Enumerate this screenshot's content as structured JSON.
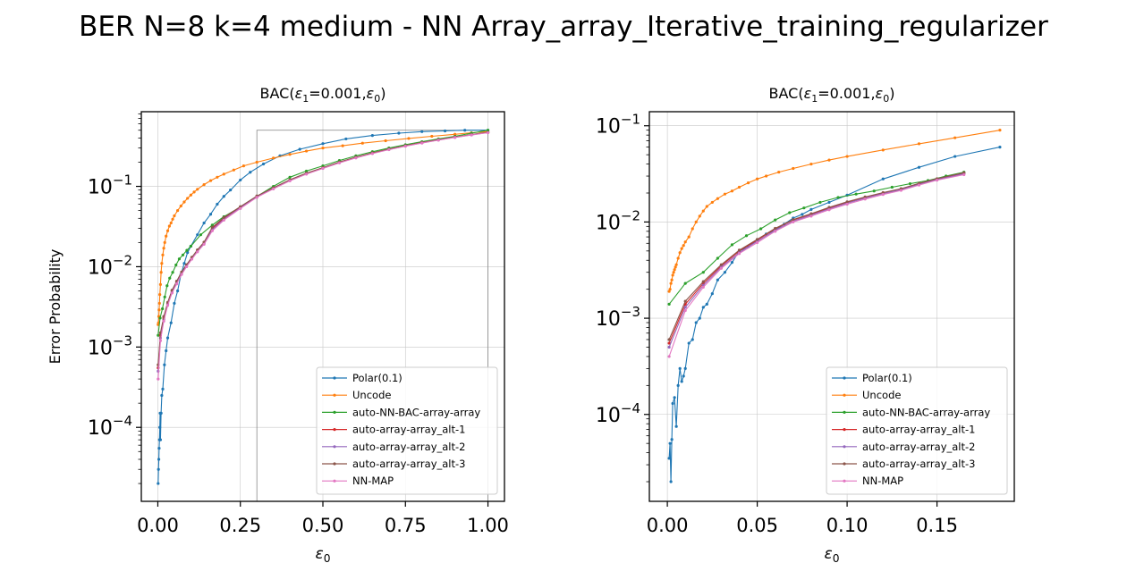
{
  "suptitle": "BER N=8 k=4 medium - NN Array_array_Iterative_training_regularizer",
  "colors": {
    "Polar(0.1)": "#1f77b4",
    "Uncode": "#ff7f0e",
    "auto-NN-BAC-array-array": "#2ca02c",
    "auto-array-array_alt-1": "#d62728",
    "auto-array-array_alt-2": "#9467bd",
    "auto-array-array_alt-3": "#8c564b",
    "NN-MAP": "#e377c2"
  },
  "chart_data": [
    {
      "type": "line",
      "title_main": "BAC(",
      "title_sym": "ε",
      "title_sub": "1",
      "title_mid": "=0.001,",
      "title_sym2": "ε",
      "title_sub2": "0",
      "title_end": ")",
      "xlabel_sym": "ε",
      "xlabel_sub": "0",
      "ylabel": "Error Probability",
      "yscale": "log",
      "xlim": [
        -0.05,
        1.05
      ],
      "ylim": [
        1.2e-05,
        0.85
      ],
      "xticks": [
        0.0,
        0.25,
        0.5,
        0.75,
        1.0
      ],
      "xtick_labels": [
        "0.00",
        "0.25",
        "0.50",
        "0.75",
        "1.00"
      ],
      "ytick_exponents": [
        -4,
        -3,
        -2,
        -1
      ],
      "ytick_label_base": "10",
      "grid": true,
      "legend_position": "lower-right",
      "annotation_box": {
        "x": [
          0.3,
          1.0
        ],
        "y": [
          1.2e-05,
          0.5
        ]
      },
      "series": [
        {
          "name": "Polar(0.1)",
          "x": [
            0.001,
            0.002,
            0.003,
            0.004,
            0.005,
            0.006,
            0.007,
            0.008,
            0.01,
            0.012,
            0.015,
            0.02,
            0.025,
            0.03,
            0.04,
            0.05,
            0.06,
            0.07,
            0.08,
            0.09,
            0.1,
            0.12,
            0.14,
            0.16,
            0.18,
            0.2,
            0.22,
            0.25,
            0.28,
            0.32,
            0.37,
            0.43,
            0.5,
            0.57,
            0.65,
            0.73,
            0.8,
            0.87,
            0.93,
            1.0
          ],
          "y": [
            2e-05,
            3e-05,
            4e-05,
            5.5e-05,
            7e-05,
            0.0001,
            0.00015,
            7e-05,
            0.00015,
            0.00025,
            0.0003,
            0.0006,
            0.0009,
            0.0013,
            0.002,
            0.0035,
            0.005,
            0.008,
            0.011,
            0.015,
            0.018,
            0.025,
            0.035,
            0.045,
            0.06,
            0.075,
            0.09,
            0.12,
            0.15,
            0.19,
            0.24,
            0.29,
            0.34,
            0.39,
            0.43,
            0.46,
            0.48,
            0.49,
            0.5,
            0.5
          ]
        },
        {
          "name": "Uncode",
          "x": [
            0.001,
            0.002,
            0.003,
            0.004,
            0.005,
            0.006,
            0.008,
            0.01,
            0.012,
            0.015,
            0.018,
            0.021,
            0.025,
            0.03,
            0.035,
            0.04,
            0.045,
            0.05,
            0.06,
            0.07,
            0.08,
            0.09,
            0.1,
            0.11,
            0.12,
            0.14,
            0.16,
            0.18,
            0.2,
            0.23,
            0.26,
            0.3,
            0.35,
            0.4,
            0.45,
            0.5,
            0.56,
            0.62,
            0.69,
            0.76,
            0.83,
            0.9,
            0.95,
            1.0
          ],
          "y": [
            0.0019,
            0.002,
            0.0024,
            0.0029,
            0.0035,
            0.0045,
            0.006,
            0.0085,
            0.011,
            0.014,
            0.017,
            0.02,
            0.024,
            0.028,
            0.032,
            0.035,
            0.039,
            0.043,
            0.05,
            0.057,
            0.064,
            0.071,
            0.078,
            0.085,
            0.092,
            0.105,
            0.118,
            0.13,
            0.142,
            0.16,
            0.18,
            0.2,
            0.225,
            0.25,
            0.275,
            0.3,
            0.32,
            0.345,
            0.37,
            0.395,
            0.42,
            0.445,
            0.465,
            0.48
          ]
        },
        {
          "name": "auto-NN-BAC-array-array",
          "x": [
            0.001,
            0.007,
            0.014,
            0.021,
            0.028,
            0.036,
            0.045,
            0.055,
            0.065,
            0.076,
            0.088,
            0.1,
            0.13,
            0.165,
            0.2,
            0.25,
            0.3,
            0.35,
            0.4,
            0.45,
            0.5,
            0.55,
            0.6,
            0.65,
            0.7,
            0.75,
            0.8,
            0.85,
            0.9,
            0.95,
            1.0
          ],
          "y": [
            0.0014,
            0.0023,
            0.003,
            0.0042,
            0.0058,
            0.0072,
            0.0085,
            0.0105,
            0.0125,
            0.014,
            0.016,
            0.018,
            0.025,
            0.033,
            0.042,
            0.055,
            0.075,
            0.1,
            0.13,
            0.155,
            0.18,
            0.21,
            0.24,
            0.27,
            0.3,
            0.33,
            0.36,
            0.39,
            0.42,
            0.46,
            0.5
          ]
        },
        {
          "name": "auto-array-array_alt-1",
          "x": [
            0.001,
            0.008,
            0.018,
            0.03,
            0.043,
            0.057,
            0.072,
            0.087,
            0.103,
            0.12,
            0.14,
            0.165,
            0.2,
            0.25,
            0.3,
            0.35,
            0.4,
            0.45,
            0.5,
            0.55,
            0.6,
            0.65,
            0.7,
            0.75,
            0.8,
            0.85,
            0.9,
            0.95,
            1.0
          ],
          "y": [
            0.00055,
            0.0014,
            0.0023,
            0.0035,
            0.005,
            0.0065,
            0.0085,
            0.0105,
            0.013,
            0.016,
            0.02,
            0.03,
            0.04,
            0.055,
            0.075,
            0.095,
            0.12,
            0.145,
            0.17,
            0.2,
            0.23,
            0.26,
            0.29,
            0.32,
            0.35,
            0.38,
            0.41,
            0.44,
            0.47
          ]
        },
        {
          "name": "auto-array-array_alt-2",
          "x": [
            0.001,
            0.008,
            0.018,
            0.03,
            0.043,
            0.057,
            0.072,
            0.087,
            0.103,
            0.12,
            0.14,
            0.165,
            0.2,
            0.25,
            0.3,
            0.35,
            0.4,
            0.45,
            0.5,
            0.55,
            0.6,
            0.65,
            0.7,
            0.75,
            0.8,
            0.85,
            0.9,
            0.95,
            1.0
          ],
          "y": [
            0.0005,
            0.0013,
            0.0022,
            0.0034,
            0.0048,
            0.0063,
            0.0082,
            0.0102,
            0.0127,
            0.0157,
            0.0195,
            0.029,
            0.039,
            0.054,
            0.074,
            0.094,
            0.118,
            0.143,
            0.168,
            0.198,
            0.228,
            0.258,
            0.288,
            0.318,
            0.348,
            0.378,
            0.408,
            0.438,
            0.468
          ]
        },
        {
          "name": "auto-array-array_alt-3",
          "x": [
            0.001,
            0.008,
            0.018,
            0.03,
            0.043,
            0.057,
            0.072,
            0.087,
            0.103,
            0.12,
            0.14,
            0.165,
            0.2,
            0.25,
            0.3,
            0.35,
            0.4,
            0.45,
            0.5,
            0.55,
            0.6,
            0.65,
            0.7,
            0.75,
            0.8,
            0.85,
            0.9,
            0.95,
            1.0
          ],
          "y": [
            0.0006,
            0.0015,
            0.0024,
            0.0036,
            0.0051,
            0.0066,
            0.0086,
            0.0106,
            0.0131,
            0.0162,
            0.0202,
            0.031,
            0.041,
            0.056,
            0.076,
            0.096,
            0.121,
            0.146,
            0.171,
            0.201,
            0.231,
            0.261,
            0.291,
            0.321,
            0.351,
            0.381,
            0.411,
            0.441,
            0.471
          ]
        },
        {
          "name": "NN-MAP",
          "x": [
            0.001,
            0.008,
            0.018,
            0.03,
            0.043,
            0.057,
            0.072,
            0.087,
            0.103,
            0.12,
            0.14,
            0.165,
            0.2,
            0.25,
            0.3,
            0.35,
            0.4,
            0.45,
            0.5,
            0.55,
            0.6,
            0.65,
            0.7,
            0.75,
            0.8,
            0.85,
            0.9,
            0.95,
            1.0
          ],
          "y": [
            0.0004,
            0.0012,
            0.0021,
            0.0033,
            0.0047,
            0.0061,
            0.008,
            0.01,
            0.0124,
            0.0153,
            0.019,
            0.028,
            0.038,
            0.053,
            0.073,
            0.093,
            0.117,
            0.142,
            0.167,
            0.196,
            0.226,
            0.256,
            0.286,
            0.316,
            0.346,
            0.376,
            0.406,
            0.436,
            0.466
          ]
        }
      ]
    },
    {
      "type": "line",
      "title_main": "BAC(",
      "title_sym": "ε",
      "title_sub": "1",
      "title_mid": "=0.001,",
      "title_sym2": "ε",
      "title_sub2": "0",
      "title_end": ")",
      "xlabel_sym": "ε",
      "xlabel_sub": "0",
      "ylabel": "",
      "yscale": "log",
      "xlim": [
        -0.01,
        0.193
      ],
      "ylim": [
        1.25e-05,
        0.14
      ],
      "xticks": [
        0.0,
        0.05,
        0.1,
        0.15
      ],
      "xtick_labels": [
        "0.00",
        "0.05",
        "0.10",
        "0.15"
      ],
      "ytick_exponents": [
        -4,
        -3,
        -2,
        -1
      ],
      "ytick_label_base": "10",
      "grid": true,
      "legend_position": "lower-right",
      "series": [
        {
          "name": "Polar(0.1)",
          "x": [
            0.001,
            0.0015,
            0.002,
            0.0025,
            0.003,
            0.004,
            0.005,
            0.006,
            0.007,
            0.008,
            0.009,
            0.01,
            0.012,
            0.014,
            0.016,
            0.018,
            0.02,
            0.022,
            0.025,
            0.028,
            0.032,
            0.036,
            0.04,
            0.045,
            0.05,
            0.055,
            0.06,
            0.065,
            0.07,
            0.075,
            0.08,
            0.09,
            0.1,
            0.12,
            0.14,
            0.16,
            0.185
          ],
          "y": [
            3.5e-05,
            5e-05,
            2e-05,
            5.5e-05,
            0.00013,
            0.00015,
            7.5e-05,
            0.0002,
            0.0003,
            0.00022,
            0.00025,
            0.0003,
            0.00055,
            0.0006,
            0.0009,
            0.001,
            0.0013,
            0.0014,
            0.0018,
            0.0025,
            0.003,
            0.0038,
            0.005,
            0.0055,
            0.0065,
            0.0075,
            0.0082,
            0.0095,
            0.011,
            0.012,
            0.0135,
            0.016,
            0.019,
            0.028,
            0.037,
            0.048,
            0.06
          ]
        },
        {
          "name": "Uncode",
          "x": [
            0.001,
            0.0015,
            0.002,
            0.0025,
            0.003,
            0.0035,
            0.004,
            0.0045,
            0.005,
            0.006,
            0.007,
            0.008,
            0.009,
            0.01,
            0.012,
            0.014,
            0.016,
            0.018,
            0.02,
            0.022,
            0.025,
            0.028,
            0.032,
            0.036,
            0.04,
            0.045,
            0.05,
            0.055,
            0.062,
            0.07,
            0.08,
            0.09,
            0.1,
            0.12,
            0.14,
            0.16,
            0.185
          ],
          "y": [
            0.0019,
            0.002,
            0.0023,
            0.0025,
            0.0028,
            0.003,
            0.0032,
            0.0034,
            0.0036,
            0.0042,
            0.0048,
            0.0053,
            0.0057,
            0.0062,
            0.007,
            0.0085,
            0.01,
            0.0115,
            0.013,
            0.0145,
            0.016,
            0.0175,
            0.0195,
            0.021,
            0.023,
            0.0255,
            0.028,
            0.03,
            0.033,
            0.036,
            0.04,
            0.044,
            0.048,
            0.056,
            0.065,
            0.075,
            0.09
          ]
        },
        {
          "name": "auto-NN-BAC-array-array",
          "x": [
            0.001,
            0.01,
            0.02,
            0.028,
            0.036,
            0.044,
            0.052,
            0.06,
            0.068,
            0.076,
            0.085,
            0.095,
            0.105,
            0.115,
            0.125,
            0.135,
            0.145,
            0.155,
            0.165
          ],
          "y": [
            0.0014,
            0.0023,
            0.003,
            0.0042,
            0.0058,
            0.0072,
            0.0085,
            0.0105,
            0.0125,
            0.014,
            0.016,
            0.018,
            0.0195,
            0.021,
            0.023,
            0.025,
            0.027,
            0.03,
            0.033
          ]
        },
        {
          "name": "auto-array-array_alt-1",
          "x": [
            0.001,
            0.01,
            0.02,
            0.03,
            0.04,
            0.05,
            0.06,
            0.07,
            0.08,
            0.09,
            0.1,
            0.11,
            0.12,
            0.13,
            0.14,
            0.15,
            0.165
          ],
          "y": [
            0.00055,
            0.0014,
            0.0023,
            0.0035,
            0.005,
            0.0065,
            0.0085,
            0.0105,
            0.012,
            0.014,
            0.016,
            0.018,
            0.02,
            0.022,
            0.025,
            0.028,
            0.032
          ]
        },
        {
          "name": "auto-array-array_alt-2",
          "x": [
            0.001,
            0.01,
            0.02,
            0.03,
            0.04,
            0.05,
            0.06,
            0.07,
            0.08,
            0.09,
            0.1,
            0.11,
            0.12,
            0.13,
            0.14,
            0.15,
            0.165
          ],
          "y": [
            0.0005,
            0.0013,
            0.0022,
            0.0034,
            0.0048,
            0.0063,
            0.0082,
            0.0102,
            0.0118,
            0.0137,
            0.0157,
            0.0177,
            0.0197,
            0.0217,
            0.0246,
            0.0276,
            0.0316
          ]
        },
        {
          "name": "auto-array-array_alt-3",
          "x": [
            0.001,
            0.01,
            0.02,
            0.03,
            0.04,
            0.05,
            0.06,
            0.07,
            0.08,
            0.09,
            0.1,
            0.11,
            0.12,
            0.13,
            0.14,
            0.15,
            0.165
          ],
          "y": [
            0.0006,
            0.0015,
            0.0024,
            0.0036,
            0.0051,
            0.0066,
            0.0086,
            0.0106,
            0.0122,
            0.0142,
            0.0162,
            0.0182,
            0.0202,
            0.0222,
            0.0252,
            0.0282,
            0.0325
          ]
        },
        {
          "name": "NN-MAP",
          "x": [
            0.001,
            0.01,
            0.02,
            0.03,
            0.04,
            0.05,
            0.06,
            0.07,
            0.08,
            0.09,
            0.1,
            0.11,
            0.12,
            0.13,
            0.14,
            0.15,
            0.165
          ],
          "y": [
            0.0004,
            0.0012,
            0.0021,
            0.0033,
            0.0047,
            0.0061,
            0.008,
            0.01,
            0.0115,
            0.0134,
            0.0153,
            0.0173,
            0.0193,
            0.0213,
            0.0242,
            0.0272,
            0.031
          ]
        }
      ]
    }
  ]
}
